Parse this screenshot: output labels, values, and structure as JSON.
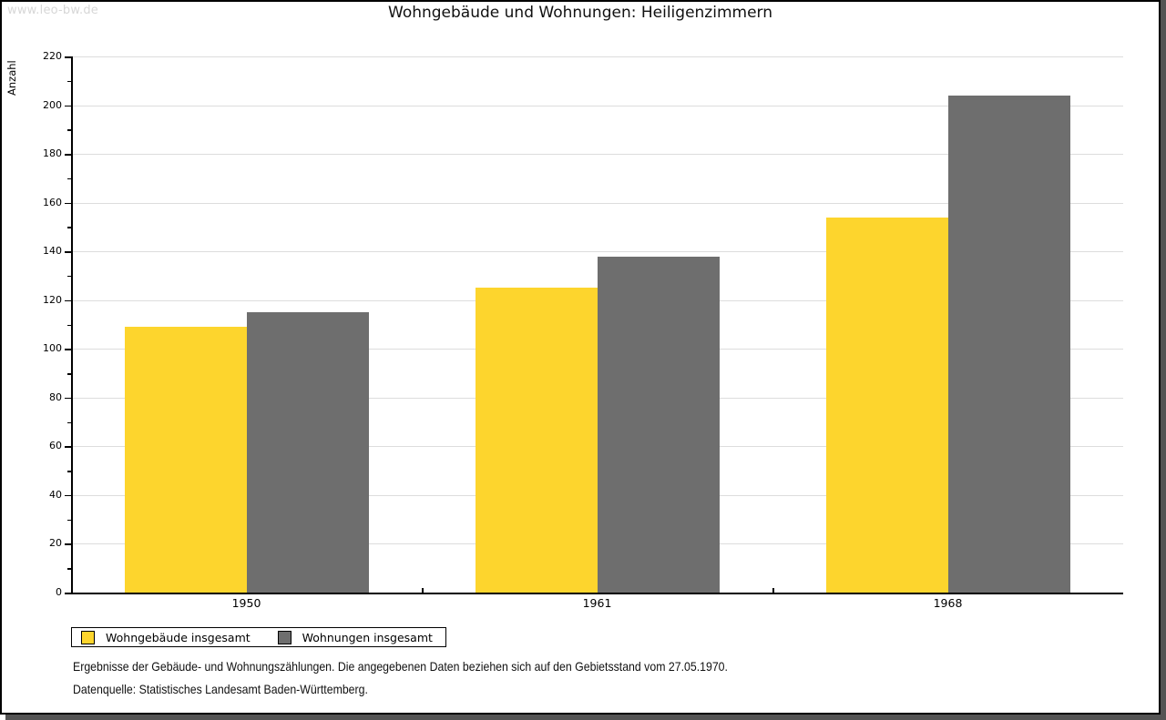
{
  "watermark": "www.leo-bw.de",
  "chart_data": {
    "type": "bar",
    "title": "Wohngebäude und Wohnungen: Heiligenzimmern",
    "xlabel": "",
    "ylabel": "Anzahl",
    "categories": [
      "1950",
      "1961",
      "1968"
    ],
    "series": [
      {
        "name": "Wohngebäude insgesamt",
        "color": "#FDD52D",
        "values": [
          109,
          125,
          154
        ]
      },
      {
        "name": "Wohnungen insgesamt",
        "color": "#6E6E6E",
        "values": [
          115,
          138,
          204
        ]
      }
    ],
    "ylim": [
      0,
      220
    ],
    "ytick_step": 20,
    "yminor_step": 10,
    "grid": true,
    "legend_position": "bottom-left"
  },
  "colors": {
    "grid": "#dddddd",
    "axis": "#000000",
    "frame_shadow": "#545454",
    "watermark": "#d7d7d7"
  },
  "footer": {
    "line1": "Ergebnisse der Gebäude- und Wohnungszählungen. Die angegebenen Daten beziehen sich auf den Gebietsstand vom 27.05.1970.",
    "line2": "Datenquelle: Statistisches Landesamt Baden-Württemberg."
  }
}
